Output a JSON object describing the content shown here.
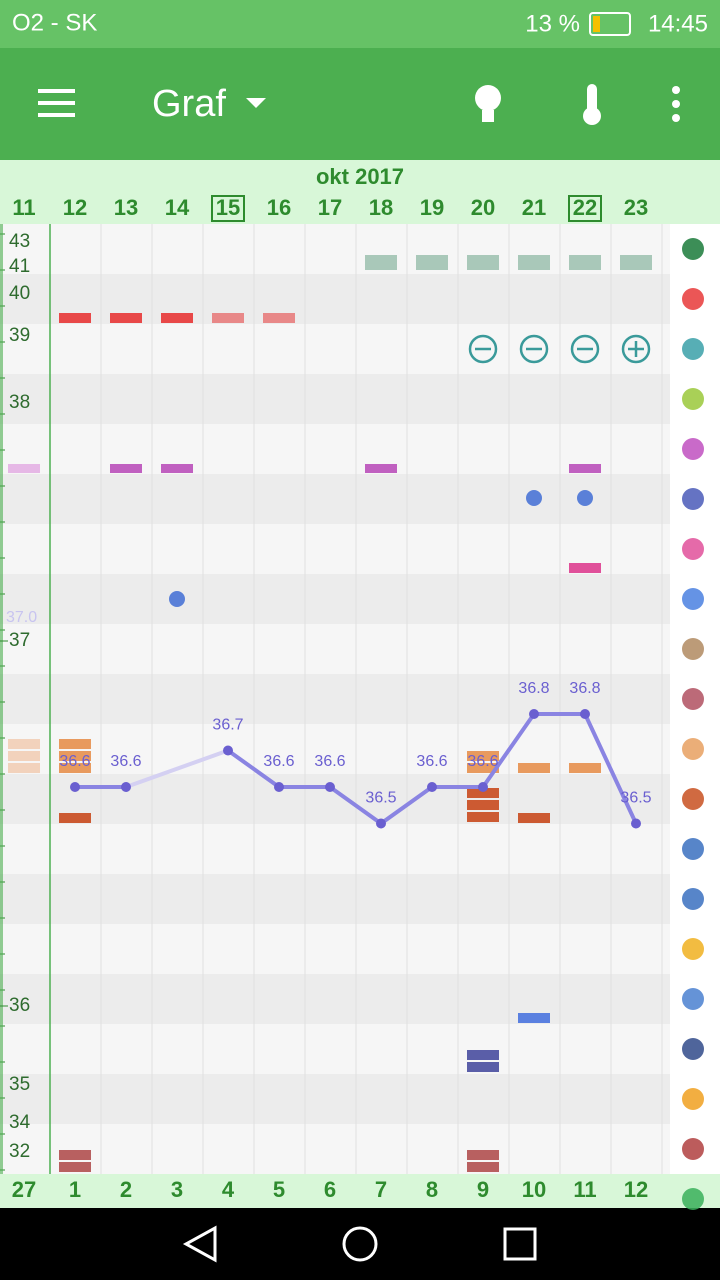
{
  "status_bar": {
    "carrier": "O2 - SK",
    "battery": "13 %",
    "time": "14:45"
  },
  "app_bar": {
    "title": "Graf"
  },
  "calendar": {
    "month": "okt 2017",
    "cycle_days": [
      "27",
      "1",
      "2",
      "3",
      "4",
      "5",
      "6",
      "7",
      "8",
      "9",
      "10",
      "11",
      "12"
    ]
  },
  "scale_labels": [
    "43",
    "41",
    "40",
    "39",
    "38",
    "35",
    "34",
    "32"
  ],
  "temp_note": "37.0",
  "chart_data": {
    "type": "line",
    "categories": [
      "11",
      "12",
      "13",
      "14",
      "15",
      "16",
      "17",
      "18",
      "19",
      "20",
      "21",
      "22",
      "23"
    ],
    "values": [
      null,
      36.6,
      36.6,
      null,
      36.7,
      36.6,
      36.6,
      36.5,
      36.6,
      36.6,
      36.8,
      36.8,
      36.5
    ],
    "yticks": [
      37,
      36
    ],
    "color": "#8a84e2"
  }
}
